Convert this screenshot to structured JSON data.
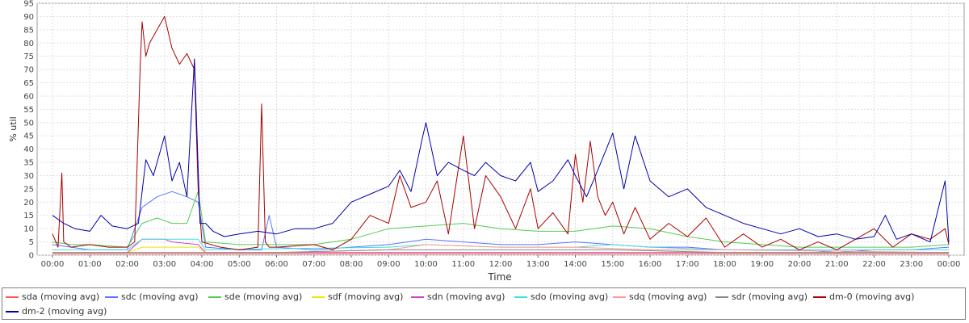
{
  "chart_data": {
    "type": "line",
    "xlabel": "Time",
    "ylabel": "% util",
    "xlim": [
      "00:00",
      "24:00"
    ],
    "ylim": [
      0,
      95
    ],
    "y_ticks": [
      0,
      5,
      10,
      15,
      20,
      25,
      30,
      35,
      40,
      45,
      50,
      55,
      60,
      65,
      70,
      75,
      80,
      85,
      90,
      95
    ],
    "x_ticks": [
      "00:00",
      "01:00",
      "02:00",
      "03:00",
      "04:00",
      "05:00",
      "06:00",
      "07:00",
      "08:00",
      "09:00",
      "10:00",
      "11:00",
      "12:00",
      "13:00",
      "14:00",
      "15:00",
      "16:00",
      "17:00",
      "18:00",
      "19:00",
      "20:00",
      "21:00",
      "22:00",
      "23:00",
      "00:00"
    ],
    "grid": true,
    "legend_position": "bottom",
    "series": [
      {
        "name": "sda (moving avg)",
        "color": "#ff5555",
        "x": [
          0.0,
          2.0,
          2.4,
          2.5,
          4.0,
          5.5,
          6.0,
          8.0,
          10.0,
          12.0,
          14.0,
          16.0,
          18.0,
          20.0,
          22.0,
          24.0
        ],
        "y": [
          0.5,
          0.5,
          0.5,
          0.5,
          0.5,
          0.5,
          0.5,
          0.5,
          0.5,
          0.5,
          0.5,
          0.5,
          0.5,
          0.5,
          0.5,
          0.5
        ]
      },
      {
        "name": "sdc (moving avg)",
        "color": "#5577ff",
        "x": [
          0.0,
          0.5,
          1.0,
          2.0,
          2.4,
          2.8,
          3.2,
          3.6,
          3.9,
          4.1,
          5.0,
          5.6,
          5.8,
          6.0,
          7.0,
          8.0,
          9.0,
          10.0,
          11.0,
          12.0,
          13.0,
          14.0,
          15.0,
          16.0,
          17.0,
          18.0,
          19.0,
          20.0,
          21.0,
          22.0,
          23.0,
          24.0
        ],
        "y": [
          4,
          3,
          2,
          2,
          18,
          22,
          24,
          22,
          20,
          3,
          2,
          2,
          15,
          3,
          2,
          3,
          4,
          6,
          5,
          4,
          4,
          5,
          4,
          3,
          3,
          2,
          2,
          2,
          1,
          2,
          2,
          3
        ]
      },
      {
        "name": "sde (moving avg)",
        "color": "#55cc55",
        "x": [
          0.0,
          0.5,
          1.0,
          2.0,
          2.4,
          2.8,
          3.2,
          3.6,
          3.9,
          4.1,
          5.0,
          6.0,
          7.0,
          8.0,
          9.0,
          10.0,
          11.0,
          12.0,
          13.0,
          14.0,
          15.0,
          16.0,
          17.0,
          18.0,
          19.0,
          20.0,
          21.0,
          22.0,
          23.0,
          24.0
        ],
        "y": [
          5,
          4,
          4,
          3,
          12,
          14,
          12,
          12,
          24,
          5,
          4,
          4,
          4,
          6,
          10,
          11,
          12,
          10,
          9,
          9,
          11,
          10,
          7,
          5,
          4,
          3,
          3,
          3,
          3,
          4
        ]
      },
      {
        "name": "sdf (moving avg)",
        "color": "#e8e800",
        "x": [
          0.0,
          2.0,
          2.4,
          3.9,
          4.1,
          12.0,
          24.0
        ],
        "y": [
          1,
          1,
          3,
          3,
          1,
          1,
          1
        ]
      },
      {
        "name": "sdn (moving avg)",
        "color": "#cc44cc",
        "x": [
          0.0,
          2.0,
          2.4,
          3.0,
          3.2,
          3.9,
          4.1,
          12.0,
          24.0
        ],
        "y": [
          1,
          1,
          6,
          6,
          5,
          4,
          1,
          1,
          1
        ]
      },
      {
        "name": "sdo (moving avg)",
        "color": "#44dddd",
        "x": [
          0.0,
          2.0,
          2.4,
          3.9,
          4.1,
          9.0,
          10.0,
          12.0,
          14.0,
          15.0,
          16.0,
          18.0,
          24.0
        ],
        "y": [
          2,
          2,
          6,
          6,
          2,
          3,
          4,
          3,
          3,
          4,
          3,
          2,
          2
        ]
      },
      {
        "name": "sdq (moving avg)",
        "color": "#ff9999",
        "x": [
          0.0,
          6.0,
          9.0,
          10.0,
          12.0,
          14.0,
          16.0,
          18.0,
          24.0
        ],
        "y": [
          1,
          1,
          2,
          4,
          3,
          3,
          2,
          2,
          1
        ]
      },
      {
        "name": "sdr (moving avg)",
        "color": "#888888",
        "x": [
          0.0,
          6.0,
          9.0,
          12.0,
          15.0,
          18.0,
          24.0
        ],
        "y": [
          1,
          1,
          2,
          2,
          2,
          1,
          1
        ]
      },
      {
        "name": "dm-0 (moving avg)",
        "color": "#aa0000",
        "x": [
          0.0,
          0.15,
          0.25,
          0.3,
          0.4,
          0.5,
          1.0,
          1.5,
          2.0,
          2.2,
          2.35,
          2.4,
          2.5,
          2.6,
          2.8,
          3.0,
          3.2,
          3.4,
          3.6,
          3.8,
          3.9,
          4.0,
          4.5,
          5.0,
          5.5,
          5.6,
          5.7,
          5.8,
          6.0,
          7.0,
          7.5,
          8.0,
          8.5,
          9.0,
          9.3,
          9.6,
          10.0,
          10.3,
          10.6,
          11.0,
          11.3,
          11.6,
          12.0,
          12.4,
          12.8,
          13.0,
          13.4,
          13.8,
          14.0,
          14.2,
          14.4,
          14.6,
          14.8,
          15.0,
          15.3,
          15.6,
          16.0,
          16.5,
          17.0,
          17.5,
          18.0,
          18.5,
          19.0,
          19.5,
          20.0,
          20.5,
          21.0,
          21.5,
          22.0,
          22.5,
          23.0,
          23.5,
          23.9,
          24.0
        ],
        "y": [
          8,
          3,
          31,
          5,
          4,
          3,
          4,
          3,
          3,
          5,
          72,
          88,
          75,
          80,
          85,
          90,
          78,
          72,
          76,
          70,
          25,
          5,
          3,
          2,
          3,
          57,
          5,
          3,
          3,
          4,
          2,
          6,
          15,
          12,
          30,
          18,
          20,
          28,
          8,
          45,
          10,
          30,
          22,
          10,
          25,
          10,
          16,
          8,
          38,
          20,
          43,
          22,
          15,
          20,
          8,
          18,
          6,
          12,
          7,
          14,
          3,
          8,
          3,
          6,
          2,
          5,
          2,
          6,
          10,
          3,
          8,
          6,
          10,
          4
        ]
      },
      {
        "name": "dm-2 (moving avg)",
        "color": "#0000aa",
        "x": [
          0.0,
          0.3,
          0.6,
          1.0,
          1.3,
          1.6,
          2.0,
          2.3,
          2.5,
          2.7,
          3.0,
          3.2,
          3.4,
          3.6,
          3.8,
          3.95,
          4.1,
          4.3,
          4.6,
          5.0,
          5.5,
          6.0,
          6.5,
          7.0,
          7.5,
          8.0,
          8.5,
          9.0,
          9.3,
          9.6,
          9.9,
          10.0,
          10.3,
          10.6,
          11.0,
          11.3,
          11.6,
          12.0,
          12.4,
          12.8,
          13.0,
          13.4,
          13.8,
          14.0,
          14.3,
          14.6,
          15.0,
          15.3,
          15.6,
          16.0,
          16.5,
          17.0,
          17.5,
          18.0,
          18.5,
          19.0,
          19.5,
          20.0,
          20.5,
          21.0,
          21.5,
          22.0,
          22.3,
          22.6,
          23.0,
          23.5,
          23.9,
          24.0
        ],
        "y": [
          15,
          12,
          10,
          9,
          15,
          11,
          10,
          12,
          36,
          30,
          45,
          28,
          35,
          22,
          74,
          12,
          12,
          9,
          7,
          8,
          9,
          8,
          10,
          10,
          12,
          20,
          23,
          26,
          32,
          24,
          44,
          50,
          30,
          35,
          32,
          30,
          35,
          30,
          28,
          35,
          24,
          28,
          36,
          30,
          22,
          32,
          46,
          25,
          45,
          28,
          22,
          25,
          18,
          15,
          12,
          10,
          8,
          10,
          7,
          8,
          6,
          7,
          15,
          6,
          8,
          5,
          28,
          5
        ]
      }
    ]
  }
}
